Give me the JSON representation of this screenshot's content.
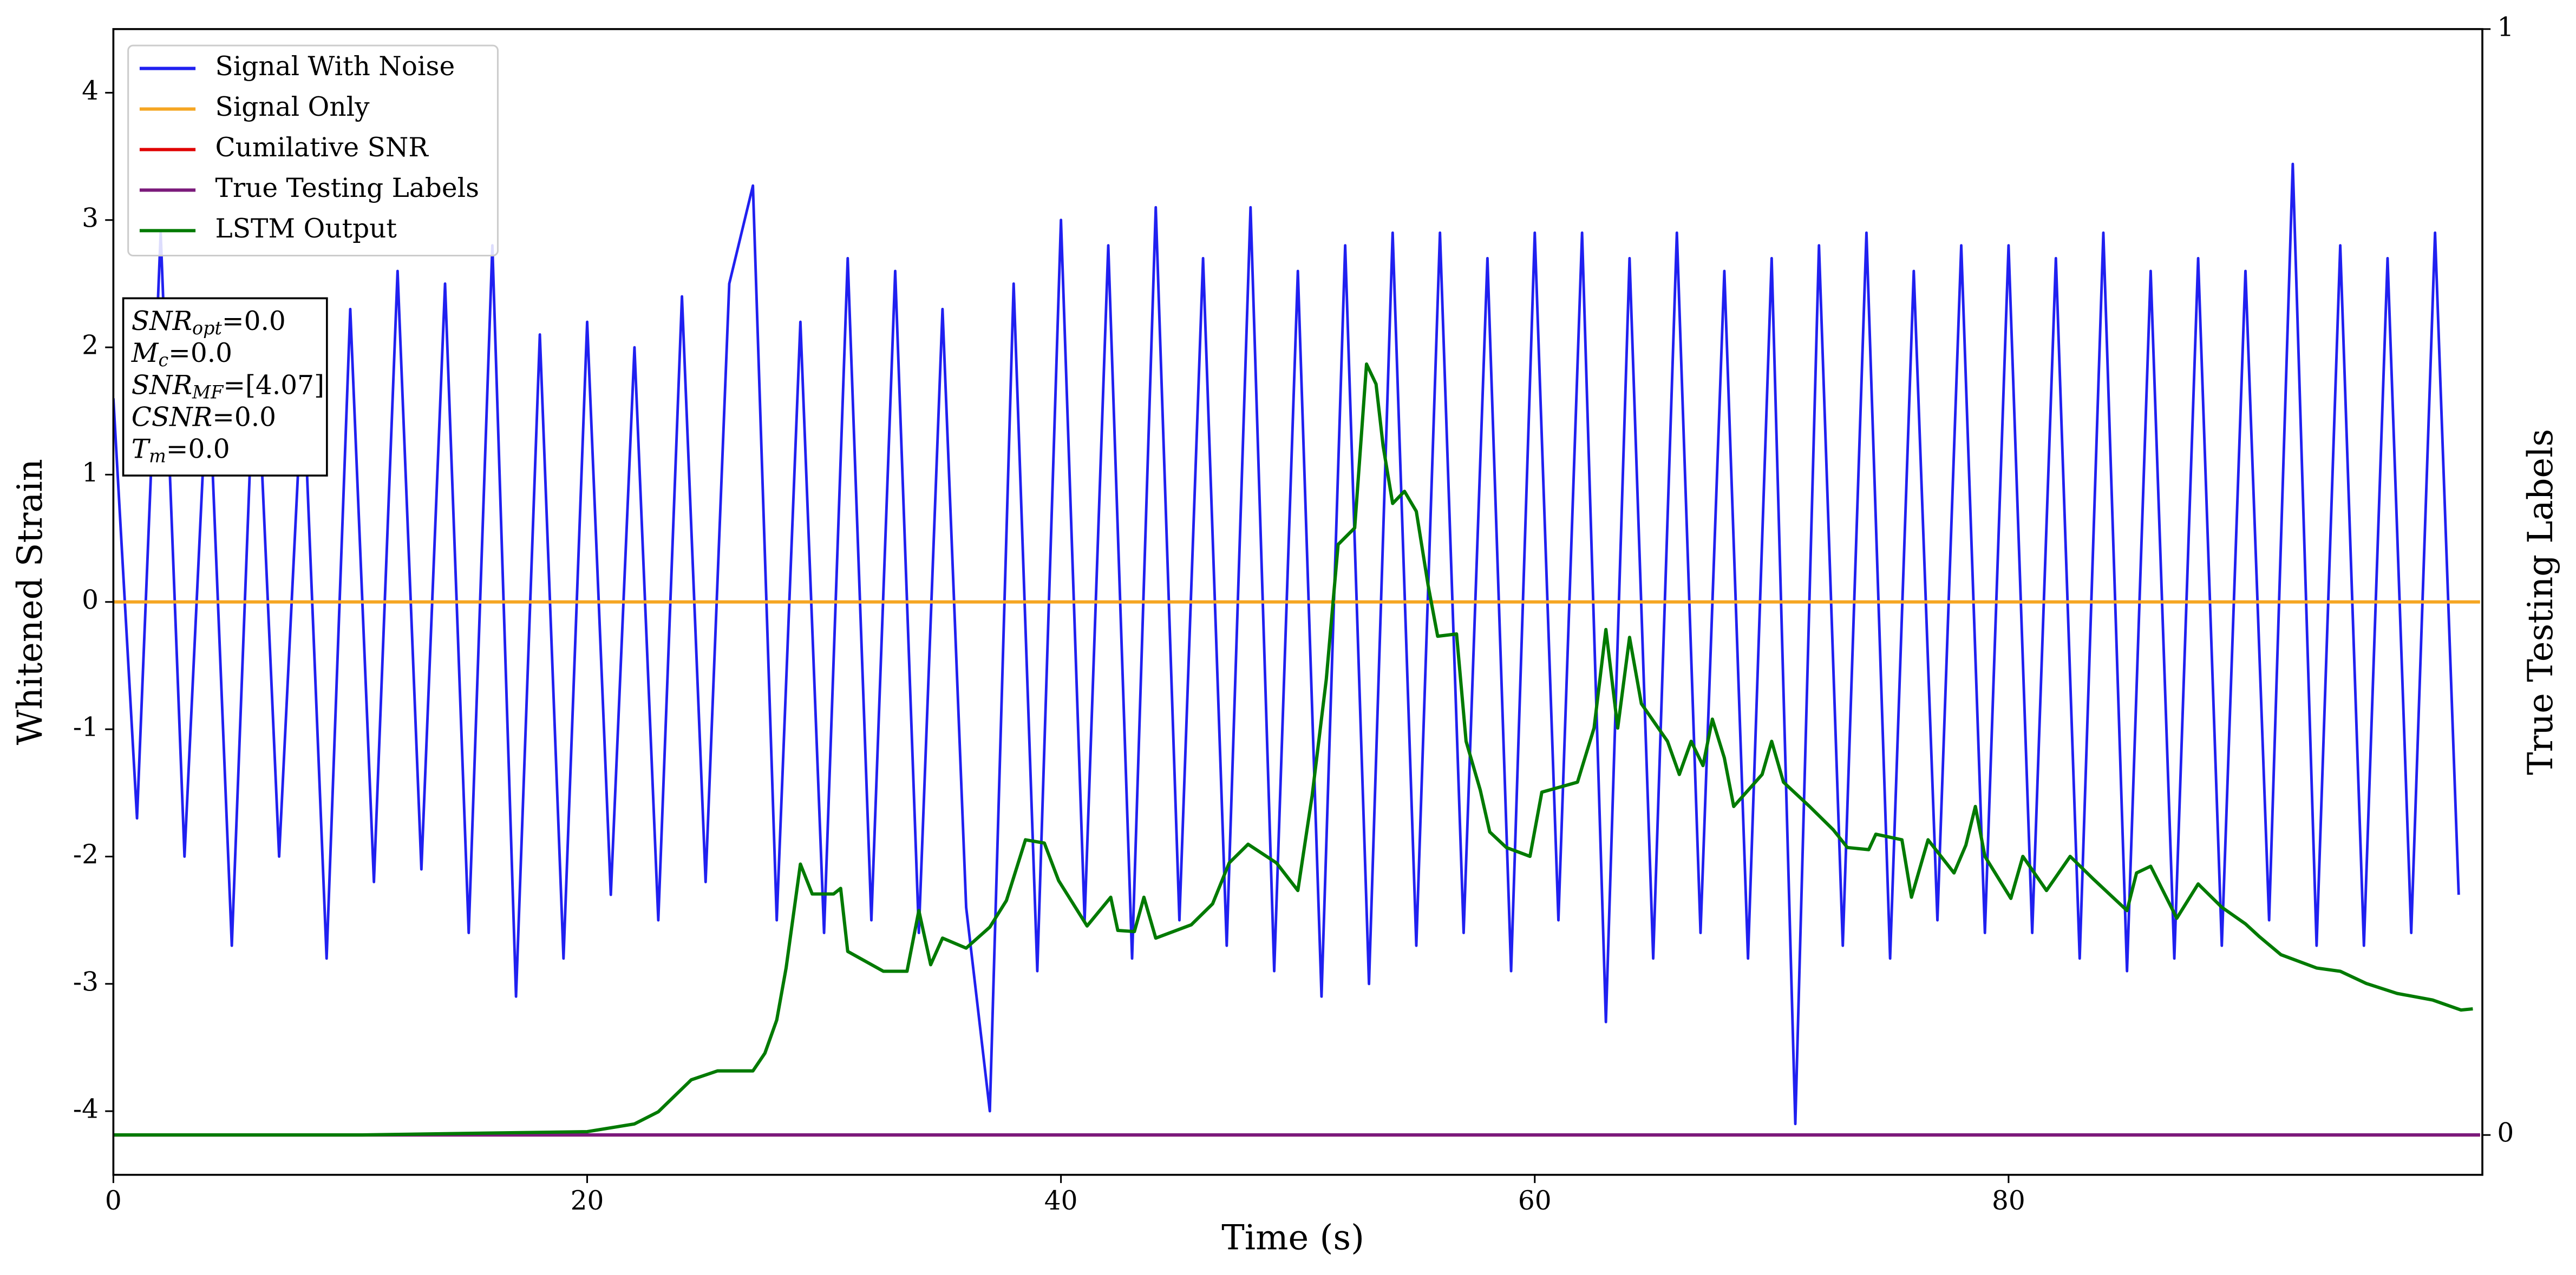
{
  "chart_data": {
    "type": "line",
    "xlabel": "Time (s)",
    "ylabel": "Whitened Strain",
    "y2label": "True Testing Labels",
    "xlim": [
      0,
      100
    ],
    "xticks": [
      0,
      20,
      40,
      60,
      80
    ],
    "ylim": [
      -4.5,
      4.5
    ],
    "yticks": [
      -4,
      -3,
      -2,
      -1,
      0,
      1,
      2,
      3,
      4
    ],
    "y2lim": [
      -0.036,
      1
    ],
    "y2ticks": [
      0,
      1
    ],
    "legend": "upper left",
    "annotation": [
      [
        "SNR",
        "opt",
        "=0.0"
      ],
      [
        "M",
        "c",
        "=0.0"
      ],
      [
        "SNR",
        "MF",
        "=[4.07]"
      ],
      [
        "CSNR",
        "",
        "=0.0"
      ],
      [
        "T",
        "m",
        "=0.0"
      ]
    ],
    "series": [
      {
        "name": "Signal With Noise",
        "color": "#2020f0",
        "x": [
          0,
          1,
          2,
          3,
          4,
          5,
          6,
          7,
          8,
          9,
          10,
          11,
          12,
          13,
          14,
          15,
          16,
          17,
          18,
          19,
          20,
          21,
          22,
          23,
          24,
          25,
          26,
          27,
          28,
          29,
          30,
          31,
          32,
          33,
          34,
          35,
          36,
          37,
          38,
          39,
          40,
          41,
          42,
          43,
          44,
          45,
          46,
          47,
          48,
          49,
          50,
          51,
          52,
          53,
          54,
          55,
          56,
          57,
          58,
          59,
          60,
          61,
          62,
          63,
          64,
          65,
          66,
          67,
          68,
          69,
          70,
          71,
          72,
          73,
          74,
          75,
          76,
          77,
          78,
          79,
          80,
          81,
          82,
          83,
          84,
          85,
          86,
          87,
          88,
          89,
          90,
          91,
          92,
          93,
          94,
          95,
          96,
          97,
          98,
          99
        ],
        "values": [
          1.6,
          -1.7,
          2.9,
          -2.0,
          1.9,
          -2.7,
          2.2,
          -2.0,
          1.8,
          -2.8,
          2.3,
          -2.2,
          2.6,
          -2.1,
          2.5,
          -2.6,
          2.8,
          -3.1,
          2.1,
          -2.8,
          2.2,
          -2.3,
          2.0,
          -2.5,
          2.4,
          -2.2,
          2.5,
          3.27,
          -2.5,
          2.2,
          -2.6,
          2.7,
          -2.5,
          2.6,
          -2.6,
          2.3,
          -2.4,
          -4.0,
          2.5,
          -2.9,
          3.0,
          -2.5,
          2.8,
          -2.8,
          3.1,
          -2.5,
          2.7,
          -2.7,
          3.1,
          -2.9,
          2.6,
          -3.1,
          2.8,
          -3.0,
          2.9,
          -2.7,
          2.9,
          -2.6,
          2.7,
          -2.9,
          2.9,
          -2.5,
          2.9,
          -3.3,
          2.7,
          -2.8,
          2.9,
          -2.6,
          2.6,
          -2.8,
          2.7,
          -4.1,
          2.8,
          -2.7,
          2.9,
          -2.8,
          2.6,
          -2.5,
          2.8,
          -2.6,
          2.8,
          -2.6,
          2.7,
          -2.8,
          2.9,
          -2.9,
          2.6,
          -2.8,
          2.7,
          -2.7,
          2.6,
          -2.5,
          3.44,
          -2.7,
          2.8,
          -2.7,
          2.7,
          -2.6,
          2.9,
          -2.3
        ]
      },
      {
        "name": "Signal Only",
        "color": "#f5a623",
        "x": [
          0,
          99.9
        ],
        "values": [
          0,
          0
        ]
      },
      {
        "name": "Cumilative SNR",
        "color": "#e00000",
        "axis": "y2",
        "x": [
          0,
          99.9
        ],
        "values": [
          0,
          0
        ]
      },
      {
        "name": "True Testing Labels",
        "color": "#7b1a7b",
        "axis": "y2",
        "x": [
          0,
          99.9
        ],
        "values": [
          0,
          0
        ]
      },
      {
        "name": "LSTM Output",
        "color": "#007a00",
        "axis": "y2",
        "x": [
          0,
          10.5,
          20.0,
          22.0,
          23.0,
          24.4,
          25.5,
          27.0,
          27.5,
          28.0,
          28.4,
          29.0,
          29.5,
          30.4,
          30.7,
          31.0,
          32.5,
          33.5,
          34.0,
          34.5,
          35.0,
          36.0,
          37.0,
          37.7,
          38.5,
          39.3,
          39.9,
          41.1,
          42.1,
          42.4,
          43.1,
          43.5,
          44.0,
          45.5,
          46.4,
          47.1,
          47.9,
          49.1,
          50.0,
          50.6,
          51.2,
          51.7,
          52.4,
          52.9,
          53.3,
          53.6,
          54.0,
          54.5,
          55.0,
          55.5,
          55.9,
          56.7,
          57.1,
          57.7,
          58.1,
          58.8,
          59.8,
          60.3,
          61.8,
          62.5,
          63.0,
          63.5,
          64.0,
          64.5,
          65.6,
          66.1,
          66.6,
          67.1,
          67.5,
          68.0,
          68.4,
          69.6,
          70.0,
          70.5,
          71.6,
          72.6,
          73.2,
          74.1,
          74.4,
          75.5,
          75.9,
          76.6,
          77.7,
          78.2,
          78.6,
          79.0,
          80.1,
          80.6,
          81.6,
          82.6,
          83.6,
          85.0,
          85.4,
          86.0,
          87.1,
          88.0,
          89.0,
          90.0,
          90.6,
          91.5,
          93.0,
          94.0,
          95.1,
          96.4,
          97.9,
          99.1,
          99.6
        ],
        "values": [
          0,
          0,
          0.003,
          0.01,
          0.021,
          0.05,
          0.058,
          0.058,
          0.074,
          0.104,
          0.151,
          0.245,
          0.218,
          0.218,
          0.223,
          0.166,
          0.148,
          0.148,
          0.203,
          0.154,
          0.178,
          0.169,
          0.188,
          0.212,
          0.267,
          0.264,
          0.23,
          0.189,
          0.215,
          0.185,
          0.184,
          0.215,
          0.178,
          0.19,
          0.209,
          0.246,
          0.263,
          0.246,
          0.221,
          0.307,
          0.412,
          0.534,
          0.549,
          0.697,
          0.679,
          0.623,
          0.571,
          0.582,
          0.564,
          0.497,
          0.451,
          0.453,
          0.356,
          0.312,
          0.274,
          0.26,
          0.252,
          0.31,
          0.319,
          0.368,
          0.457,
          0.368,
          0.45,
          0.39,
          0.356,
          0.326,
          0.356,
          0.334,
          0.376,
          0.341,
          0.297,
          0.326,
          0.356,
          0.319,
          0.297,
          0.276,
          0.26,
          0.258,
          0.272,
          0.267,
          0.215,
          0.267,
          0.237,
          0.262,
          0.297,
          0.252,
          0.214,
          0.252,
          0.221,
          0.252,
          0.231,
          0.203,
          0.237,
          0.243,
          0.196,
          0.227,
          0.206,
          0.191,
          0.179,
          0.163,
          0.151,
          0.148,
          0.137,
          0.128,
          0.122,
          0.113,
          0.114
        ]
      }
    ]
  }
}
